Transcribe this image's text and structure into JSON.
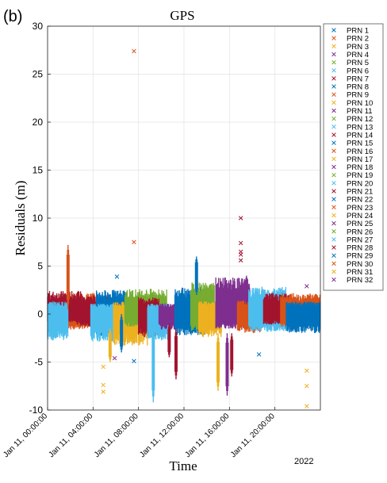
{
  "panel_tag": "(b)",
  "chart_data": {
    "type": "scatter",
    "title": "GPS",
    "xlabel": "Time",
    "ylabel": "Residuals (m)",
    "year_label": "2022",
    "ylim": [
      -10,
      30
    ],
    "yticks": [
      -10,
      -5,
      0,
      5,
      10,
      15,
      20,
      25,
      30
    ],
    "xlim": [
      "Jan 11, 00:00:00",
      "Jan 11, 24:00:00"
    ],
    "xticks": [
      "Jan 11, 00:00:00",
      "Jan 11, 04:00:00",
      "Jan 11, 08:00:00",
      "Jan 11, 12:00:00",
      "Jan 11, 16:00:00",
      "Jan 11, 20:00:00"
    ],
    "x_tick_hours": [
      0,
      4,
      8,
      12,
      16,
      20
    ],
    "grid": true,
    "legend_position": "outside-right",
    "marker": "x",
    "series": [
      {
        "name": "PRN 1",
        "color": "#0072BD"
      },
      {
        "name": "PRN 2",
        "color": "#D95319"
      },
      {
        "name": "PRN 3",
        "color": "#EDB120"
      },
      {
        "name": "PRN 4",
        "color": "#7E2F8E"
      },
      {
        "name": "PRN 5",
        "color": "#77AC30"
      },
      {
        "name": "PRN 6",
        "color": "#4DBEEE"
      },
      {
        "name": "PRN 7",
        "color": "#A2142F"
      },
      {
        "name": "PRN 8",
        "color": "#0072BD"
      },
      {
        "name": "PRN 9",
        "color": "#D95319"
      },
      {
        "name": "PRN 10",
        "color": "#EDB120"
      },
      {
        "name": "PRN 11",
        "color": "#7E2F8E"
      },
      {
        "name": "PRN 12",
        "color": "#77AC30"
      },
      {
        "name": "PRN 13",
        "color": "#4DBEEE"
      },
      {
        "name": "PRN 14",
        "color": "#A2142F"
      },
      {
        "name": "PRN 15",
        "color": "#0072BD"
      },
      {
        "name": "PRN 16",
        "color": "#D95319"
      },
      {
        "name": "PRN 17",
        "color": "#EDB120"
      },
      {
        "name": "PRN 18",
        "color": "#7E2F8E"
      },
      {
        "name": "PRN 19",
        "color": "#77AC30"
      },
      {
        "name": "PRN 20",
        "color": "#4DBEEE"
      },
      {
        "name": "PRN 21",
        "color": "#A2142F"
      },
      {
        "name": "PRN 22",
        "color": "#0072BD"
      },
      {
        "name": "PRN 23",
        "color": "#D95319"
      },
      {
        "name": "PRN 24",
        "color": "#EDB120"
      },
      {
        "name": "PRN 25",
        "color": "#7E2F8E"
      },
      {
        "name": "PRN 26",
        "color": "#77AC30"
      },
      {
        "name": "PRN 27",
        "color": "#4DBEEE"
      },
      {
        "name": "PRN 28",
        "color": "#A2142F"
      },
      {
        "name": "PRN 29",
        "color": "#0072BD"
      },
      {
        "name": "PRN 30",
        "color": "#D95319"
      },
      {
        "name": "PRN 31",
        "color": "#EDB120"
      },
      {
        "name": "PRN 32",
        "color": "#7E2F8E"
      }
    ],
    "bands": [
      {
        "series": "PRN 30",
        "t_start": 1.0,
        "t_end": 4.2,
        "low": -1.5,
        "high": 2.0
      },
      {
        "series": "PRN 7",
        "t_start": 0.0,
        "t_end": 3.0,
        "low": -0.8,
        "high": 2.2
      },
      {
        "series": "PRN 21",
        "t_start": 2.5,
        "t_end": 6.0,
        "low": -1.2,
        "high": 1.8
      },
      {
        "series": "PRN 13",
        "t_start": 0.0,
        "t_end": 1.8,
        "low": -2.5,
        "high": 1.2
      },
      {
        "series": "PRN 22",
        "t_start": 4.3,
        "t_end": 7.0,
        "low": -2.2,
        "high": 2.3
      },
      {
        "series": "PRN 27",
        "t_start": 3.8,
        "t_end": 6.0,
        "low": -2.6,
        "high": 1.0
      },
      {
        "series": "PRN 10",
        "t_start": 5.8,
        "t_end": 8.8,
        "low": -3.0,
        "high": 1.2
      },
      {
        "series": "PRN 5",
        "t_start": 6.8,
        "t_end": 10.5,
        "low": -1.2,
        "high": 2.4
      },
      {
        "series": "PRN 14",
        "t_start": 8.0,
        "t_end": 9.8,
        "low": -2.2,
        "high": 1.6
      },
      {
        "series": "PRN 20",
        "t_start": 8.8,
        "t_end": 10.6,
        "low": -2.5,
        "high": 1.0
      },
      {
        "series": "PRN 18",
        "t_start": 9.8,
        "t_end": 13.0,
        "low": -1.5,
        "high": 1.0
      },
      {
        "series": "PRN 15",
        "t_start": 11.2,
        "t_end": 14.0,
        "low": -2.0,
        "high": 2.6
      },
      {
        "series": "PRN 12",
        "t_start": 12.6,
        "t_end": 14.7,
        "low": -1.6,
        "high": 3.0
      },
      {
        "series": "PRN 17",
        "t_start": 13.3,
        "t_end": 15.3,
        "low": -2.2,
        "high": 1.2
      },
      {
        "series": "PRN 25",
        "t_start": 14.8,
        "t_end": 17.8,
        "low": -1.4,
        "high": 3.5
      },
      {
        "series": "PRN 9",
        "t_start": 16.7,
        "t_end": 18.8,
        "low": -1.8,
        "high": 1.3
      },
      {
        "series": "PRN 6",
        "t_start": 17.7,
        "t_end": 21.0,
        "low": -1.7,
        "high": 2.6
      },
      {
        "series": "PRN 28",
        "t_start": 19.0,
        "t_end": 21.5,
        "low": -1.0,
        "high": 2.0
      },
      {
        "series": "PRN 23",
        "t_start": 20.5,
        "t_end": 24.0,
        "low": -1.2,
        "high": 2.0
      },
      {
        "series": "PRN 29",
        "t_start": 21.0,
        "t_end": 24.0,
        "low": -1.8,
        "high": 1.2
      }
    ],
    "spikes": [
      {
        "series": "PRN 30",
        "t": 1.8,
        "low": 0.5,
        "high": 7.2
      },
      {
        "series": "PRN 1",
        "t": 6.5,
        "low": -4.0,
        "high": 0.0
      },
      {
        "series": "PRN 13",
        "t": 9.3,
        "low": -9.2,
        "high": -1.0
      },
      {
        "series": "PRN 21",
        "t": 11.3,
        "low": -6.8,
        "high": -1.5
      },
      {
        "series": "PRN 29",
        "t": 13.1,
        "low": 2.0,
        "high": 6.0
      },
      {
        "series": "PRN 24",
        "t": 15.0,
        "low": -8.0,
        "high": -2.0
      },
      {
        "series": "PRN 4",
        "t": 15.8,
        "low": -8.5,
        "high": -2.0
      },
      {
        "series": "PRN 28",
        "t": 16.2,
        "low": -6.5,
        "high": -2.0
      },
      {
        "series": "PRN 4",
        "t": 17.5,
        "low": 1.0,
        "high": 4.0
      },
      {
        "series": "PRN 24",
        "t": 5.5,
        "low": -5.0,
        "high": -1.5
      },
      {
        "series": "PRN 7",
        "t": 10.7,
        "low": -4.5,
        "high": -1.0
      }
    ],
    "outliers": [
      {
        "series": "PRN 9",
        "t": 7.6,
        "y": 27.4
      },
      {
        "series": "PRN 9",
        "t": 7.6,
        "y": 7.5
      },
      {
        "series": "PRN 14",
        "t": 17.0,
        "y": 10.0
      },
      {
        "series": "PRN 14",
        "t": 17.0,
        "y": 7.4
      },
      {
        "series": "PRN 14",
        "t": 17.0,
        "y": 6.5
      },
      {
        "series": "PRN 14",
        "t": 17.0,
        "y": 6.2
      },
      {
        "series": "PRN 14",
        "t": 17.0,
        "y": 5.6
      },
      {
        "series": "PRN 3",
        "t": 4.9,
        "y": -5.5
      },
      {
        "series": "PRN 3",
        "t": 4.9,
        "y": -7.4
      },
      {
        "series": "PRN 3",
        "t": 4.9,
        "y": -8.1
      },
      {
        "series": "PRN 1",
        "t": 7.6,
        "y": -4.9
      },
      {
        "series": "PRN 4",
        "t": 5.9,
        "y": -4.6
      },
      {
        "series": "PRN 3",
        "t": 22.8,
        "y": -5.9
      },
      {
        "series": "PRN 3",
        "t": 22.8,
        "y": -7.5
      },
      {
        "series": "PRN 3",
        "t": 22.8,
        "y": -9.6
      },
      {
        "series": "PRN 4",
        "t": 22.8,
        "y": 2.9
      },
      {
        "series": "PRN 22",
        "t": 18.6,
        "y": -4.2
      },
      {
        "series": "PRN 15",
        "t": 6.1,
        "y": 3.9
      }
    ]
  }
}
